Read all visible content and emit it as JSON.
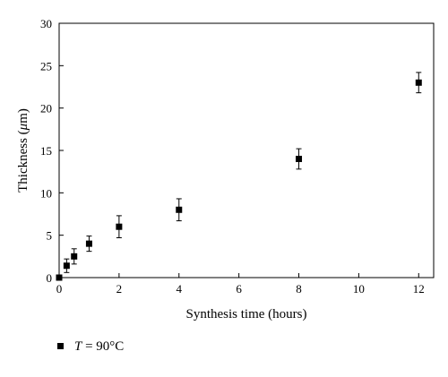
{
  "chart_data": {
    "type": "scatter",
    "title": "",
    "xlabel": "Synthesis time (hours)",
    "ylabel_prefix": "Thickness (",
    "ylabel_unit": "μ",
    "ylabel_suffix": "m)",
    "xlim": [
      0,
      12.5
    ],
    "ylim": [
      0,
      30
    ],
    "x_ticks": [
      0,
      2,
      4,
      6,
      8,
      10,
      12
    ],
    "y_ticks": [
      0,
      5,
      10,
      15,
      20,
      25,
      30
    ],
    "grid": false,
    "legend_position": "bottom-left",
    "series": [
      {
        "legend_var": "T",
        "legend_rest": " = 90°C",
        "marker": "square",
        "color": "#000000",
        "points": [
          {
            "x": 0,
            "y": 0,
            "err": 0
          },
          {
            "x": 0.25,
            "y": 1.4,
            "err": 0.8
          },
          {
            "x": 0.5,
            "y": 2.5,
            "err": 0.9
          },
          {
            "x": 1,
            "y": 4.0,
            "err": 0.9
          },
          {
            "x": 2,
            "y": 6.0,
            "err": 1.3
          },
          {
            "x": 4,
            "y": 8.0,
            "err": 1.3
          },
          {
            "x": 8,
            "y": 14.0,
            "err": 1.2
          },
          {
            "x": 12,
            "y": 23.0,
            "err": 1.2
          }
        ]
      }
    ]
  }
}
